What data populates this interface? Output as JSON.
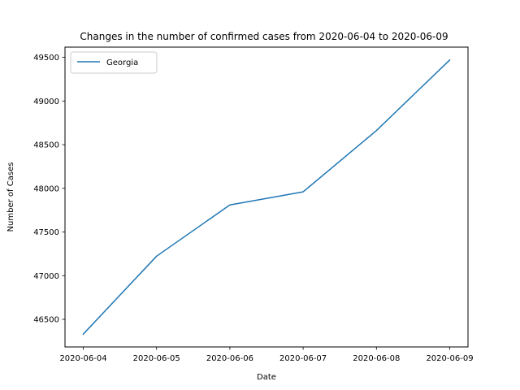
{
  "chart_data": {
    "type": "line",
    "title": "Changes in the number of confirmed cases from 2020-06-04 to 2020-06-09",
    "xlabel": "Date",
    "ylabel": "Number of Cases",
    "categories": [
      "2020-06-04",
      "2020-06-05",
      "2020-06-06",
      "2020-06-07",
      "2020-06-08",
      "2020-06-09"
    ],
    "series": [
      {
        "name": "Georgia",
        "color": "#1f77b4",
        "values": [
          46331,
          47223,
          47810,
          47960,
          48662,
          49470
        ]
      }
    ],
    "ylim": [
      46184,
      49617
    ],
    "yticks": [
      46500,
      47000,
      47500,
      48000,
      48500,
      49000,
      49500
    ],
    "grid": false,
    "legend_position": "top-left"
  }
}
